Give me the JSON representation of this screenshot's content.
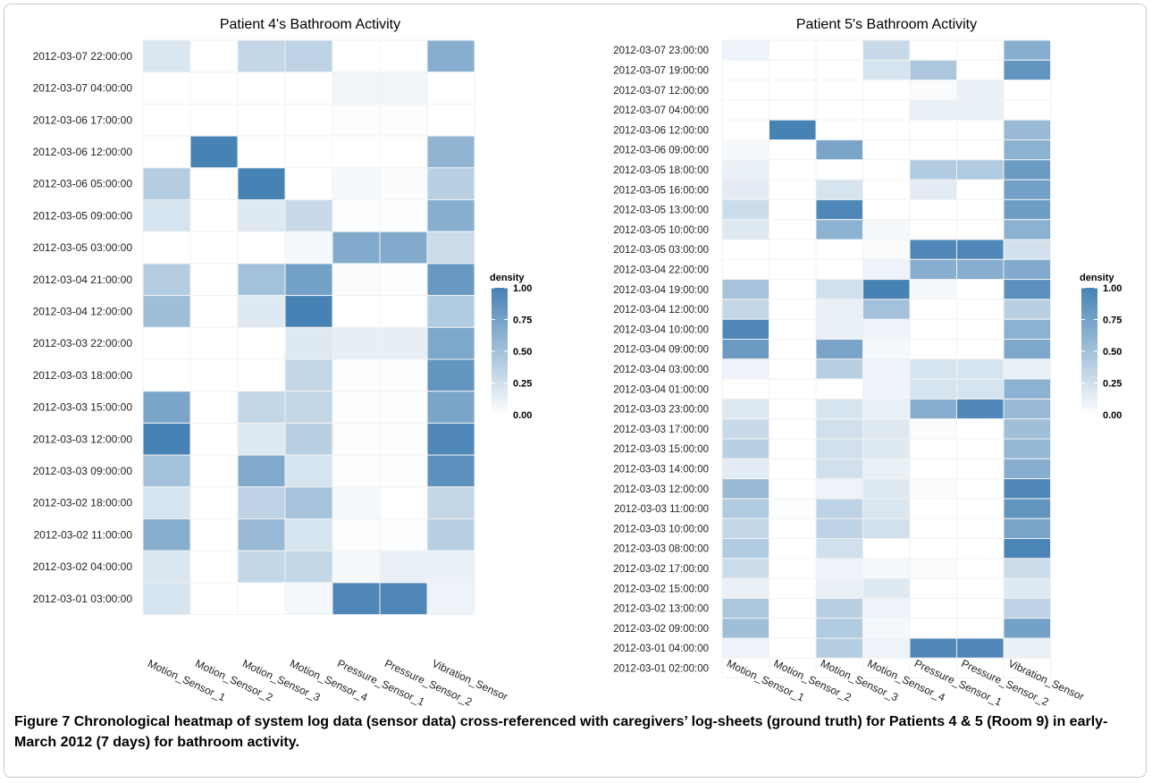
{
  "colors": {
    "low": "#ffffff",
    "high": "#4682b4",
    "grid": "#f2f2f2"
  },
  "figure": {
    "label": "Figure 7",
    "text": "Chronological heatmap of system log data (sensor data) cross-referenced with caregivers’ log-sheets (ground truth) for Patients 4 & 5 (Room 9) in early-March 2012 (7 days) for bathroom activity."
  },
  "chart_data": [
    {
      "type": "heatmap",
      "title": "Patient 4's Bathroom Activity",
      "x_categories": [
        "Motion_Sensor_1",
        "Motion_Sensor_2",
        "Motion_Sensor_3",
        "Motion_Sensor_4",
        "Pressure_Sensor_1",
        "Pressure_Sensor_2",
        "Vibration_Sensor"
      ],
      "y_categories": [
        "2012-03-07 22:00:00",
        "2012-03-07 04:00:00",
        "2012-03-06 17:00:00",
        "2012-03-06 12:00:00",
        "2012-03-06 05:00:00",
        "2012-03-05 09:00:00",
        "2012-03-05 03:00:00",
        "2012-03-04 21:00:00",
        "2012-03-04 12:00:00",
        "2012-03-03 22:00:00",
        "2012-03-03 18:00:00",
        "2012-03-03 15:00:00",
        "2012-03-03 12:00:00",
        "2012-03-03 09:00:00",
        "2012-03-02 18:00:00",
        "2012-03-02 11:00:00",
        "2012-03-02 04:00:00",
        "2012-03-01 03:00:00"
      ],
      "values": [
        [
          0.2,
          0,
          0.32,
          0.35,
          0,
          0,
          0.65
        ],
        [
          0,
          0,
          0,
          0,
          0.08,
          0.08,
          0
        ],
        [
          0,
          0,
          0,
          0,
          0.02,
          0.02,
          0
        ],
        [
          0,
          1.0,
          0,
          0,
          0,
          0,
          0.6
        ],
        [
          0.4,
          0,
          1.0,
          0,
          0.05,
          0.03,
          0.38
        ],
        [
          0.22,
          0,
          0.18,
          0.3,
          0.02,
          0.02,
          0.65
        ],
        [
          0,
          0,
          0,
          0.05,
          0.68,
          0.68,
          0.28
        ],
        [
          0.4,
          0,
          0.5,
          0.75,
          0.03,
          0.02,
          0.82
        ],
        [
          0.52,
          0,
          0.18,
          1.0,
          0,
          0,
          0.42
        ],
        [
          0,
          0,
          0,
          0.18,
          0.13,
          0.13,
          0.7
        ],
        [
          0,
          0,
          0,
          0.32,
          0.02,
          0.02,
          0.85
        ],
        [
          0.72,
          0,
          0.32,
          0.32,
          0.02,
          0.02,
          0.72
        ],
        [
          1.0,
          0,
          0.18,
          0.38,
          0.02,
          0.02,
          0.95
        ],
        [
          0.5,
          0,
          0.68,
          0.22,
          0.02,
          0.02,
          0.88
        ],
        [
          0.22,
          0,
          0.35,
          0.48,
          0.05,
          0,
          0.32
        ],
        [
          0.65,
          0,
          0.55,
          0.22,
          0.02,
          0.02,
          0.38
        ],
        [
          0.2,
          0,
          0.32,
          0.32,
          0.05,
          0.12,
          0.12
        ],
        [
          0.22,
          0,
          0,
          0.06,
          0.95,
          0.95,
          0.1
        ]
      ],
      "legend": {
        "title": "density",
        "ticks": [
          "1.00",
          "0.75",
          "0.50",
          "0.25",
          "0.00"
        ],
        "range": [
          0,
          1
        ]
      }
    },
    {
      "type": "heatmap",
      "title": "Patient 5's Bathroom Activity",
      "x_categories": [
        "Motion_Sensor_1",
        "Motion_Sensor_2",
        "Motion_Sensor_3",
        "Motion_Sensor_4",
        "Pressure_Sensor_1",
        "Pressure_Sensor_2",
        "Vibration_Sensor"
      ],
      "y_categories": [
        "2012-03-07 23:00:00",
        "2012-03-07 19:00:00",
        "2012-03-07 12:00:00",
        "2012-03-07 04:00:00",
        "2012-03-06 12:00:00",
        "2012-03-06 09:00:00",
        "2012-03-05 18:00:00",
        "2012-03-05 16:00:00",
        "2012-03-05 13:00:00",
        "2012-03-05 10:00:00",
        "2012-03-05 03:00:00",
        "2012-03-04 22:00:00",
        "2012-03-04 19:00:00",
        "2012-03-04 12:00:00",
        "2012-03-04 10:00:00",
        "2012-03-04 09:00:00",
        "2012-03-04 03:00:00",
        "2012-03-04 01:00:00",
        "2012-03-03 23:00:00",
        "2012-03-03 17:00:00",
        "2012-03-03 15:00:00",
        "2012-03-03 14:00:00",
        "2012-03-03 12:00:00",
        "2012-03-03 11:00:00",
        "2012-03-03 10:00:00",
        "2012-03-03 08:00:00",
        "2012-03-02 17:00:00",
        "2012-03-02 15:00:00",
        "2012-03-02 13:00:00",
        "2012-03-02 09:00:00",
        "2012-03-01 04:00:00",
        "2012-03-01 02:00:00"
      ],
      "values": [
        [
          0.1,
          0,
          0,
          0.3,
          0,
          0,
          0.65
        ],
        [
          0,
          0,
          0,
          0.22,
          0.45,
          0,
          0.85
        ],
        [
          0,
          0,
          0,
          0,
          0.03,
          0.12,
          0
        ],
        [
          0,
          0,
          0,
          0,
          0.12,
          0.12,
          0
        ],
        [
          0,
          1.0,
          0,
          0,
          0,
          0,
          0.55
        ],
        [
          0.05,
          0,
          0.72,
          0,
          0,
          0,
          0.62
        ],
        [
          0.12,
          0,
          0,
          0,
          0.42,
          0.42,
          0.8
        ],
        [
          0.15,
          0,
          0.22,
          0,
          0.15,
          0,
          0.75
        ],
        [
          0.28,
          0,
          0.95,
          0,
          0,
          0,
          0.78
        ],
        [
          0.18,
          0,
          0.62,
          0.06,
          0,
          0,
          0.62
        ],
        [
          0,
          0,
          0,
          0.03,
          0.95,
          0.95,
          0.25
        ],
        [
          0,
          0,
          0,
          0.1,
          0.65,
          0.65,
          0.68
        ],
        [
          0.48,
          0,
          0.25,
          1.0,
          0.05,
          0,
          0.88
        ],
        [
          0.32,
          0,
          0.12,
          0.5,
          0,
          0,
          0.38
        ],
        [
          0.95,
          0,
          0.12,
          0.1,
          0,
          0,
          0.62
        ],
        [
          0.8,
          0,
          0.72,
          0.06,
          0,
          0,
          0.7
        ],
        [
          0.1,
          0,
          0.38,
          0.1,
          0.22,
          0.22,
          0.12
        ],
        [
          0,
          0,
          0,
          0.1,
          0.22,
          0.22,
          0.62
        ],
        [
          0.18,
          0,
          0.22,
          0.12,
          0.65,
          0.95,
          0.55
        ],
        [
          0.3,
          0,
          0.25,
          0.18,
          0.03,
          0,
          0.52
        ],
        [
          0.38,
          0,
          0.25,
          0.18,
          0,
          0,
          0.58
        ],
        [
          0.15,
          0,
          0.25,
          0.12,
          0,
          0,
          0.65
        ],
        [
          0.55,
          0,
          0.1,
          0.18,
          0.03,
          0,
          0.95
        ],
        [
          0.42,
          0.02,
          0.35,
          0.2,
          0,
          0,
          0.85
        ],
        [
          0.32,
          0,
          0.35,
          0.25,
          0,
          0,
          0.72
        ],
        [
          0.42,
          0,
          0.25,
          0,
          0,
          0,
          0.98
        ],
        [
          0.28,
          0,
          0.1,
          0.05,
          0.03,
          0,
          0.28
        ],
        [
          0.12,
          0,
          0.12,
          0.18,
          0,
          0,
          0.18
        ],
        [
          0.45,
          0,
          0.38,
          0.1,
          0,
          0,
          0.35
        ],
        [
          0.52,
          0,
          0.42,
          0.06,
          0,
          0,
          0.75
        ],
        [
          0.1,
          0,
          0.4,
          0.1,
          0.95,
          0.95,
          0.12
        ],
        [
          0,
          0,
          0,
          0,
          0,
          0,
          0
        ]
      ],
      "legend": {
        "title": "density",
        "ticks": [
          "1.00",
          "0.75",
          "0.50",
          "0.25",
          "0.00"
        ],
        "range": [
          0,
          1
        ]
      }
    }
  ]
}
